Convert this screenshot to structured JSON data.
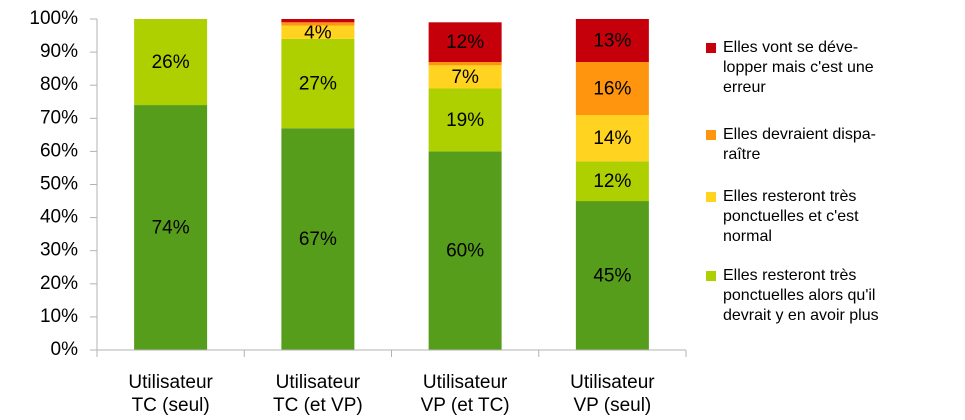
{
  "chart_data": {
    "type": "stacked_bar",
    "categories": [
      "Utilisateur\nTC (seul)",
      "Utilisateur\nTC (et VP)",
      "Utilisateur\nVP (et TC)",
      "Utilisateur\nVP (seul)"
    ],
    "series": [
      {
        "color": "#579d1c",
        "values": [
          74,
          67,
          60,
          45
        ],
        "value_labels": [
          "74%",
          "67%",
          "60%",
          "45%"
        ]
      },
      {
        "name": "Elles resteront très\nponctuelles alors qu'il\ndevrait y en avoir plus",
        "color": "#aecf00",
        "values": [
          26,
          27,
          19,
          12
        ],
        "value_labels": [
          "26%",
          "27%",
          "19%",
          "12%"
        ]
      },
      {
        "name": "Elles resteront très\nponctuelles et c'est\nnormal",
        "color": "#ffd320",
        "values": [
          0,
          4,
          7,
          14
        ],
        "value_labels": [
          null,
          "4%",
          "7%",
          "14%"
        ]
      },
      {
        "name": "Elles devraient dispa-\nraître",
        "color": "#ff950e",
        "values": [
          0,
          1,
          1,
          16
        ],
        "value_labels": [
          null,
          null,
          null,
          "16%"
        ]
      },
      {
        "name": "Elles vont se déve-\nlopper mais c'est une\nerreur",
        "color": "#c5000b",
        "values": [
          0,
          1,
          12,
          13
        ],
        "value_labels": [
          null,
          null,
          "12%",
          "13%"
        ]
      }
    ],
    "ylim": [
      0,
      100
    ],
    "yticks": [
      {
        "value": 0,
        "label": "0%"
      },
      {
        "value": 10,
        "label": "10%"
      },
      {
        "value": 20,
        "label": "20%"
      },
      {
        "value": 30,
        "label": "30%"
      },
      {
        "value": 40,
        "label": "40%"
      },
      {
        "value": 50,
        "label": "50%"
      },
      {
        "value": 60,
        "label": "60%"
      },
      {
        "value": 70,
        "label": "70%"
      },
      {
        "value": 80,
        "label": "80%"
      },
      {
        "value": 90,
        "label": "90%"
      },
      {
        "value": 100,
        "label": "100%"
      }
    ],
    "grid": false,
    "legend": "right"
  }
}
